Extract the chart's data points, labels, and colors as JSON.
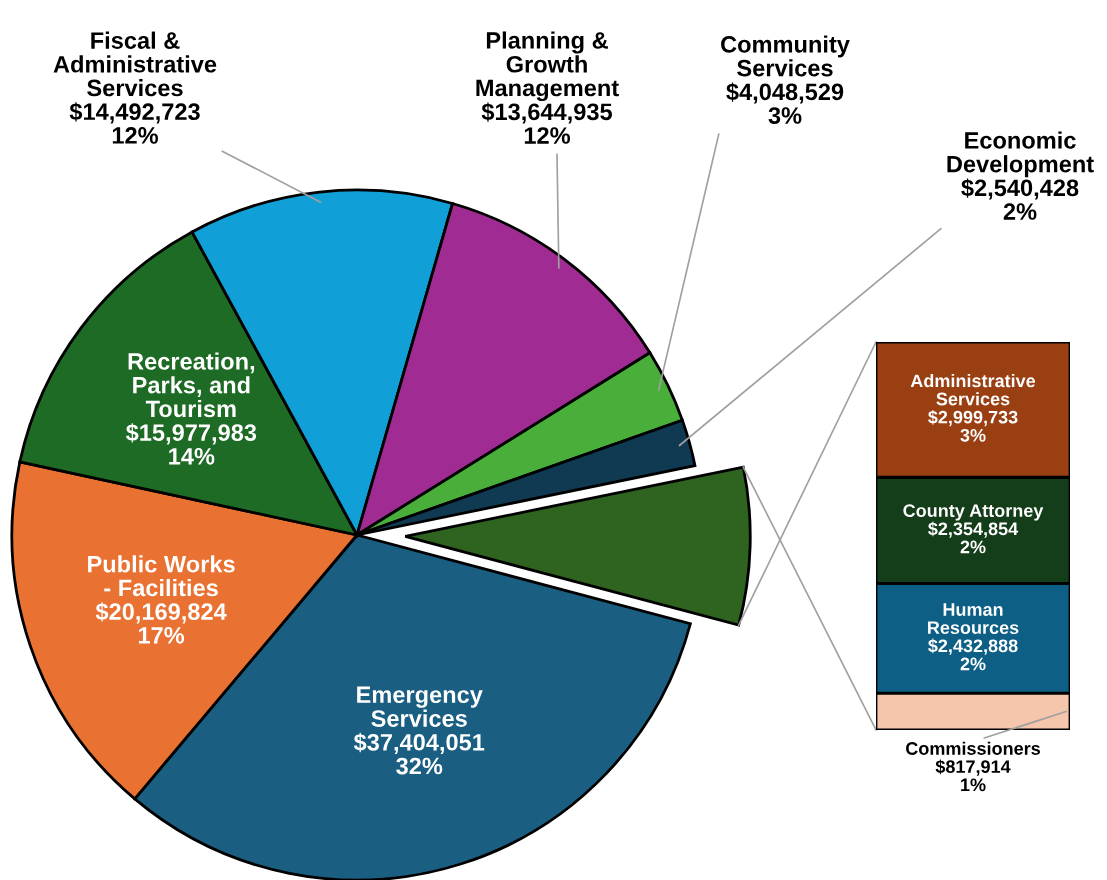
{
  "chart_data": [
    {
      "type": "pie",
      "categories": [
        null,
        "Emergency\nServices",
        "Public Works\n- Facilities",
        "Recreation,\nParks, and\nTourism",
        "Fiscal &\nAdministrative\nServices",
        "Planning &\nGrowth\nManagement",
        "Community\nServices",
        "Economic\nDevelopment"
      ],
      "values": [
        8605389,
        37404051,
        20169824,
        15977983,
        14492723,
        13644935,
        4048529,
        2540428
      ],
      "value_labels": [
        null,
        "$37,404,051\n32%",
        "$20,169,824\n17%",
        "$15,977,983\n14%",
        "$14,492,723\n12%",
        "$13,644,935\n12%",
        "$4,048,529\n3%",
        "$2,540,428\n2%"
      ],
      "colors": [
        "#2e6320",
        "#1a5e82",
        "#e97132",
        "#1e6b25",
        "#119fd8",
        "#a02b93",
        "#4aae3a",
        "#0f3a52"
      ]
    },
    {
      "type": "bar",
      "stacked": true,
      "categories": [
        null
      ],
      "series": [
        {
          "name": "Commissioners",
          "color": "#f5c6ab",
          "values": [
            817914
          ],
          "value_labels": [
            "$817,914\n1%"
          ]
        },
        {
          "name": "Human\nResources",
          "color": "#0d5f85",
          "values": [
            2432888
          ],
          "value_labels": [
            "$2,432,888\n2%"
          ]
        },
        {
          "name": "County Attorney",
          "color": "#143e1a",
          "values": [
            2354854
          ],
          "value_labels": [
            "$2,354,854\n2%"
          ]
        },
        {
          "name": "Administrative\nServices",
          "color": "#9a3f12",
          "values": [
            2999733
          ],
          "value_labels": [
            "$2,999,733\n3%"
          ]
        }
      ]
    }
  ]
}
